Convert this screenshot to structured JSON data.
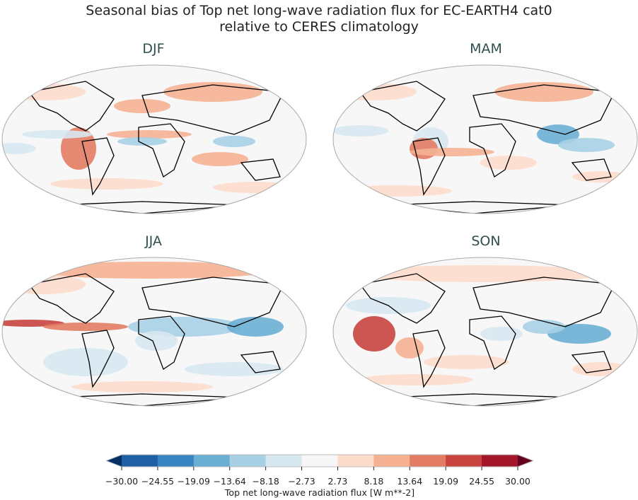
{
  "title_line1": "Seasonal bias of Top net long-wave radiation flux for EC-EARTH4 cat0",
  "title_line2": "relative to CERES climatology",
  "panels": [
    {
      "label": "DJF"
    },
    {
      "label": "MAM"
    },
    {
      "label": "JJA"
    },
    {
      "label": "SON"
    }
  ],
  "colorbar": {
    "label": "Top net long-wave radiation flux [W m**-2]",
    "ticks": [
      "−30.00",
      "−24.55",
      "−19.09",
      "−13.64",
      "−8.18",
      "−2.73",
      "2.73",
      "8.18",
      "13.64",
      "19.09",
      "24.55",
      "30.00"
    ],
    "colors": [
      "#1f5fa5",
      "#3884c0",
      "#6aaed3",
      "#a8d0e5",
      "#d7e8f1",
      "#f7f7f7",
      "#fcdccb",
      "#f5b192",
      "#e27c63",
      "#c8443f",
      "#a3162b"
    ],
    "under_color": "#053061",
    "over_color": "#67001f",
    "extend": "both"
  }
}
